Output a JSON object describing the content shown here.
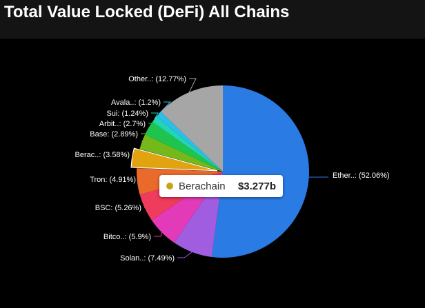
{
  "title": "Total Value Locked (DeFi) All Chains",
  "chart_data": {
    "type": "pie",
    "title": "Total Value Locked (DeFi) All Chains",
    "slices": [
      {
        "label": "Ether..: (52.06%)",
        "value": 52.06,
        "color": "#2a7be4"
      },
      {
        "label": "Solan..: (7.49%)",
        "value": 7.49,
        "color": "#a15de0"
      },
      {
        "label": "Bitco..: (5.9%)",
        "value": 5.9,
        "color": "#e23ab8"
      },
      {
        "label": "BSC: (5.26%)",
        "value": 5.26,
        "color": "#ef3b5c"
      },
      {
        "label": "Tron: (4.91%)",
        "value": 4.91,
        "color": "#ea6a2b"
      },
      {
        "label": "Berac..: (3.58%)",
        "value": 3.58,
        "color": "#e1a30f"
      },
      {
        "label": "Base: (2.89%)",
        "value": 2.89,
        "color": "#74b81a"
      },
      {
        "label": "Arbit..: (2.7%)",
        "value": 2.7,
        "color": "#1fc44f"
      },
      {
        "label": "Sui: (1.24%)",
        "value": 1.24,
        "color": "#22d6b5"
      },
      {
        "label": "Avala..: (1.2%)",
        "value": 1.2,
        "color": "#2bbfe8"
      },
      {
        "label": "Other..: (12.77%)",
        "value": 12.77,
        "color": "#a6a6a6"
      }
    ],
    "highlighted": "Berac..: (3.58%)"
  },
  "tooltip": {
    "name": "Berachain",
    "value": "$3.277b",
    "color": "#c9a21a"
  }
}
